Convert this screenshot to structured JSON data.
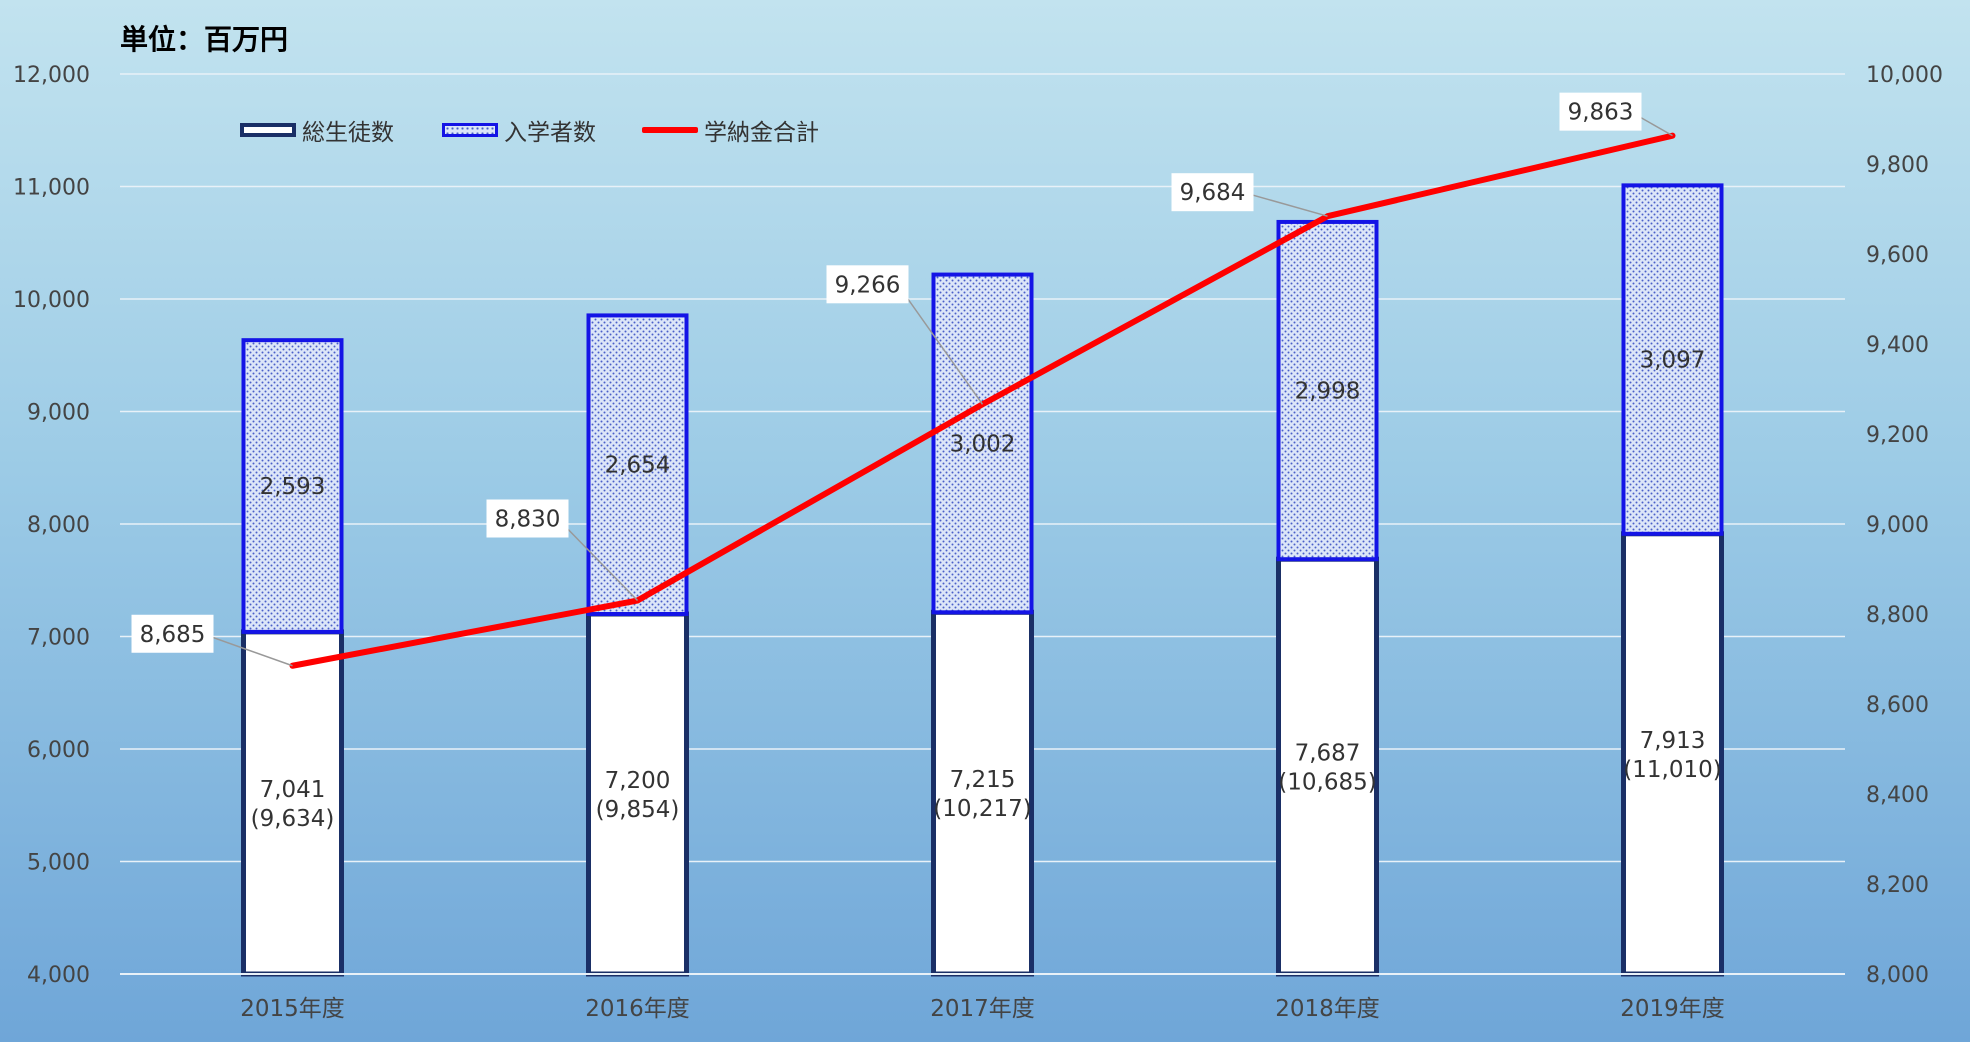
{
  "unit_label": "単位：百万円",
  "chart_data": {
    "type": "bar",
    "categories": [
      "2015年度",
      "2016年度",
      "2017年度",
      "2018年度",
      "2019年度"
    ],
    "series": [
      {
        "name": "総生徒数",
        "type": "stacked-bar",
        "values": [
          7041,
          7200,
          7215,
          7687,
          7913
        ],
        "color": "#ffffff",
        "border": "#1a2f66"
      },
      {
        "name": "入学者数",
        "type": "stacked-bar",
        "values": [
          2593,
          2654,
          3002,
          2998,
          3097
        ],
        "color": "#dce6f8",
        "border": "#1414e6"
      },
      {
        "name": "学納金合計",
        "type": "line",
        "axis": "right",
        "values": [
          8685,
          8830,
          9266,
          9684,
          9863
        ],
        "color": "#ff0000"
      }
    ],
    "totals_labels": [
      "(9,634)",
      "(9,854)",
      "(10,217)",
      "(10,685)",
      "(11,010)"
    ],
    "left_axis": {
      "ylim": [
        4000,
        12000
      ],
      "ticks": [
        "4,000",
        "5,000",
        "6,000",
        "7,000",
        "8,000",
        "9,000",
        "10,000",
        "11,000",
        "12,000"
      ]
    },
    "right_axis": {
      "ylim": [
        8000,
        10000
      ],
      "ticks": [
        "8,000",
        "8,200",
        "8,400",
        "8,600",
        "8,800",
        "9,000",
        "9,200",
        "9,400",
        "9,600",
        "9,800",
        "10,000"
      ]
    },
    "grid": true,
    "legend_position": "top-left"
  }
}
